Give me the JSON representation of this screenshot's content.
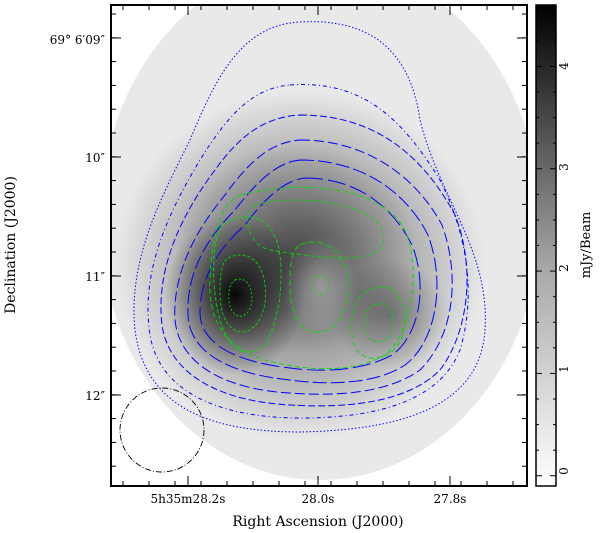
{
  "chart_data": {
    "type": "heatmap",
    "title": "",
    "xlabel": "Right Ascension (J2000)",
    "ylabel": "Declination (J2000)",
    "colorbar_label": "mJy/Beam",
    "x_ticks": [
      {
        "value": 28.2,
        "label": "5h35m28.2s"
      },
      {
        "value": 28.0,
        "label": "28.0s"
      },
      {
        "value": 27.8,
        "label": "27.8s"
      }
    ],
    "y_ticks": [
      {
        "value": 9,
        "label": "69° 6′09″"
      },
      {
        "value": 10,
        "label": "10″"
      },
      {
        "value": 11,
        "label": "11″"
      },
      {
        "value": 12,
        "label": "12″"
      }
    ],
    "colorbar_ticks": [
      "0",
      "1",
      "2",
      "3",
      "4"
    ],
    "colorbar_range": [
      -0.1,
      4.6
    ],
    "colormap": "gray_inverted",
    "background_contour_color": "#0000ff",
    "overlay_contour_color": "#00cc00",
    "intensity_peaks": [
      {
        "ra": 28.2,
        "dec": 11.2,
        "value": 4.4
      },
      {
        "ra": 28.04,
        "dec": 11.15,
        "value": 2.6
      },
      {
        "ra": 27.9,
        "dec": 11.35,
        "value": 2.5
      }
    ],
    "beam": "ellipse",
    "grid": false
  }
}
